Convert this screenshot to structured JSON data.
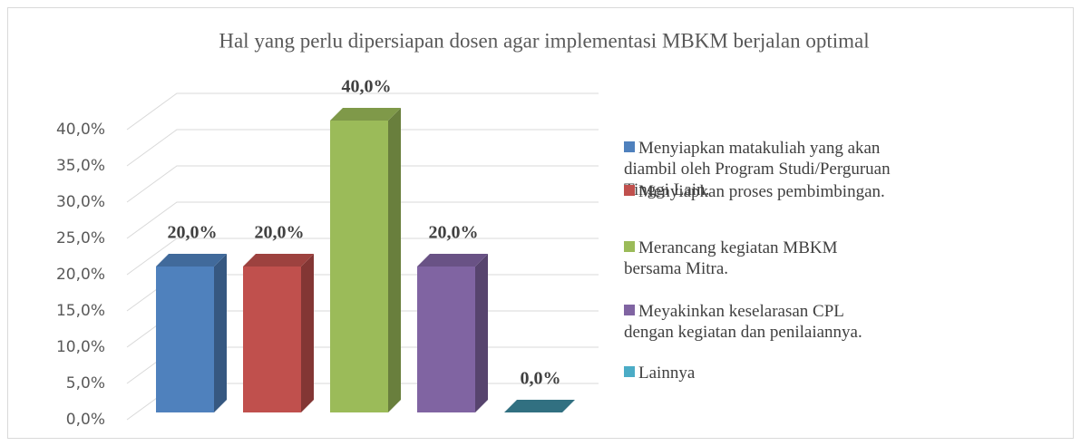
{
  "chart_data": {
    "type": "bar3d",
    "title": "Hal yang perlu dipersiapan dosen agar implementasi MBKM berjalan optimal",
    "series": [
      {
        "name": "Menyiapkan matakuliah yang akan diambil oleh Program Studi/Perguruan Tinggi Lain.",
        "color": "#4f81bd",
        "values": [
          20
        ],
        "value_labels": [
          "20,0%"
        ]
      },
      {
        "name": "Menyiapkan proses pembimbingan.",
        "color": "#c0504d",
        "values": [
          20
        ],
        "value_labels": [
          "20,0%"
        ]
      },
      {
        "name": "Merancang kegiatan MBKM bersama Mitra.",
        "color": "#9bbb59",
        "values": [
          40
        ],
        "value_labels": [
          "40,0%"
        ]
      },
      {
        "name": "Meyakinkan keselarasan CPL dengan kegiatan dan penilaiannya.",
        "color": "#8064a2",
        "values": [
          20
        ],
        "value_labels": [
          "20,0%"
        ]
      },
      {
        "name": "Lainnya",
        "color": "#4bacc6",
        "values": [
          0
        ],
        "value_labels": [
          "0,0%"
        ]
      }
    ],
    "ylim": [
      0,
      40
    ],
    "yticks": [
      {
        "value": 0,
        "label": "0,0%"
      },
      {
        "value": 5,
        "label": "5,0%"
      },
      {
        "value": 10,
        "label": "10,0%"
      },
      {
        "value": 15,
        "label": "15,0%"
      },
      {
        "value": 20,
        "label": "20,0%"
      },
      {
        "value": 25,
        "label": "25,0%"
      },
      {
        "value": 30,
        "label": "30,0%"
      },
      {
        "value": 35,
        "label": "35,0%"
      },
      {
        "value": 40,
        "label": "40,0%"
      }
    ],
    "grid": true,
    "legend": "right"
  }
}
